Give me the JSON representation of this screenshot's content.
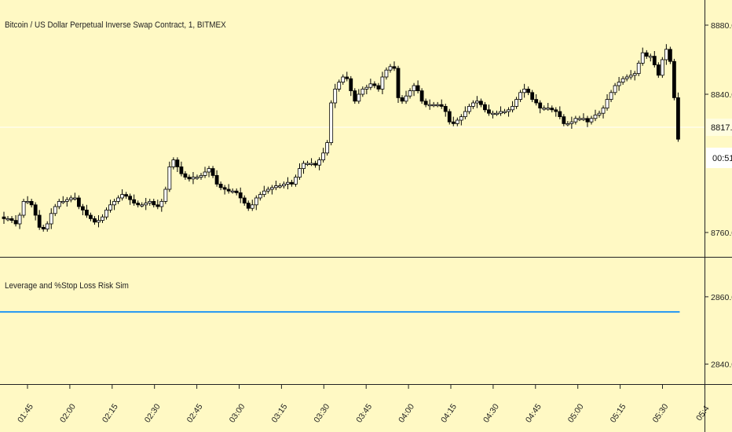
{
  "header": {
    "symbol_title": "Bitcoin / US Dollar Perpetual Inverse Swap Contract, 1, BITMEX"
  },
  "indicator": {
    "title": "Leverage and %Stop Loss Risk Sim"
  },
  "price_axis": {
    "ticks": [
      "8880.0",
      "8840.0",
      "8760.0"
    ],
    "current_price": "8817.0",
    "countdown": "00:51"
  },
  "indicator_axis": {
    "ticks": [
      "2860.0",
      "2840.0"
    ]
  },
  "time_axis": {
    "ticks": [
      "01:45",
      "02:00",
      "02:15",
      "02:30",
      "02:45",
      "03:00",
      "03:15",
      "03:30",
      "03:45",
      "04:00",
      "04:15",
      "04:30",
      "04:45",
      "05:00",
      "05:15",
      "05:30",
      "05:4"
    ]
  },
  "colors": {
    "background": "#fff9c4",
    "candle_body": "#000000",
    "indicator_line": "#2196f3"
  },
  "chart_data": {
    "type": "candlestick",
    "y_range": [
      8750,
      8890
    ],
    "indicator_value": 2855.5,
    "indicator_range": [
      2835,
      2870
    ],
    "series": [
      {
        "name": "price",
        "values": [
          8768,
          8768,
          8767,
          8765,
          8770,
          8778,
          8778,
          8776,
          8770,
          8763,
          8762,
          8765,
          8771,
          8775,
          8778,
          8778,
          8779,
          8780,
          8780,
          8775,
          8773,
          8770,
          8768,
          8766,
          8767,
          8769,
          8773,
          8776,
          8778,
          8780,
          8782,
          8781,
          8779,
          8777,
          8776,
          8776,
          8777,
          8778,
          8776,
          8775,
          8778,
          8785,
          8798,
          8802,
          8798,
          8794,
          8792,
          8791,
          8792,
          8792,
          8793,
          8795,
          8797,
          8793,
          8788,
          8786,
          8785,
          8784,
          8784,
          8783,
          8780,
          8777,
          8774,
          8776,
          8780,
          8782,
          8784,
          8785,
          8786,
          8787,
          8787,
          8788,
          8789,
          8788,
          8792,
          8797,
          8800,
          8800,
          8800,
          8799,
          8802,
          8806,
          8812,
          8835,
          8843,
          8847,
          8850,
          8849,
          8842,
          8836,
          8840,
          8843,
          8844,
          8846,
          8845,
          8843,
          8850,
          8854,
          8856,
          8855,
          8838,
          8836,
          8839,
          8842,
          8845,
          8842,
          8836,
          8834,
          8834,
          8834,
          8834,
          8833,
          8830,
          8824,
          8823,
          8825,
          8827,
          8830,
          8833,
          8835,
          8836,
          8834,
          8831,
          8829,
          8829,
          8829,
          8830,
          8830,
          8831,
          8833,
          8837,
          8841,
          8843,
          8841,
          8837,
          8835,
          8832,
          8832,
          8832,
          8831,
          8830,
          8827,
          8823,
          8823,
          8824,
          8826,
          8826,
          8826,
          8824,
          8826,
          8828,
          8829,
          8832,
          8837,
          8841,
          8845,
          8847,
          8849,
          8850,
          8851,
          8852,
          8858,
          8864,
          8862,
          8862,
          8857,
          8851,
          8860,
          8866,
          8859,
          8838,
          8814
        ]
      }
    ]
  }
}
